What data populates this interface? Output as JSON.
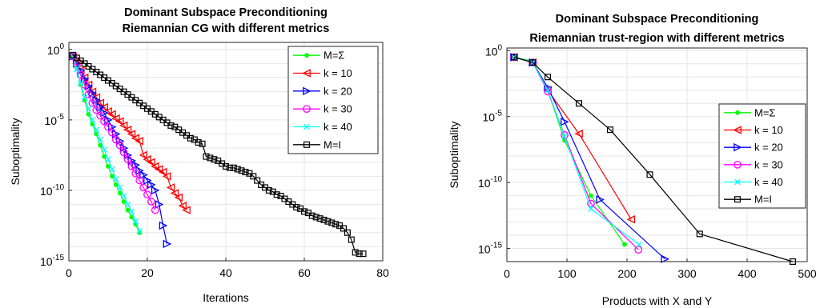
{
  "chart_data": [
    {
      "type": "line",
      "title": [
        "Dominant Subspace Preconditioning",
        "Riemannian CG with different metrics"
      ],
      "xlabel": "Iterations",
      "ylabel": "Suboptimality",
      "xlim": [
        0,
        80
      ],
      "ylim_log10": [
        -15,
        0.5
      ],
      "yscale": "log",
      "grid": true,
      "legend_position": "top-right",
      "xticks": [
        0,
        20,
        40,
        60,
        80
      ],
      "yticks": [
        {
          "exp": 0,
          "label": "10",
          "sup": "0"
        },
        {
          "exp": -5,
          "label": "10",
          "sup": "-5"
        },
        {
          "exp": -10,
          "label": "10",
          "sup": "-10"
        },
        {
          "exp": -15,
          "label": "10",
          "sup": "-15"
        }
      ],
      "series": [
        {
          "name": "M=Σ",
          "color": "#00ff00",
          "marker": "dot",
          "x": [
            1,
            2,
            3,
            4,
            5,
            6,
            7,
            8,
            9,
            10,
            11,
            12,
            13,
            14,
            15,
            16,
            17,
            18
          ],
          "log10y": [
            -0.5,
            -1.3,
            -2.5,
            -3.6,
            -4.6,
            -5.3,
            -6.0,
            -6.8,
            -7.6,
            -8.3,
            -9.0,
            -9.6,
            -10.2,
            -10.8,
            -11.4,
            -11.9,
            -12.4,
            -13.0
          ]
        },
        {
          "name": "k = 10",
          "color": "#ff0000",
          "marker": "triangle-left",
          "x": [
            1,
            2,
            3,
            4,
            5,
            6,
            7,
            8,
            9,
            10,
            11,
            12,
            13,
            14,
            15,
            16,
            17,
            18,
            19,
            20,
            21,
            22,
            23,
            24,
            25,
            26,
            27,
            28,
            29,
            30
          ],
          "log10y": [
            -0.5,
            -1.0,
            -1.5,
            -2.0,
            -2.5,
            -3.0,
            -3.4,
            -3.8,
            -4.1,
            -4.4,
            -4.6,
            -4.9,
            -5.1,
            -5.4,
            -5.7,
            -6.0,
            -6.3,
            -6.5,
            -7.5,
            -7.8,
            -8.0,
            -8.3,
            -8.5,
            -8.7,
            -9.0,
            -9.8,
            -10.2,
            -10.5,
            -11.1,
            -11.4
          ]
        },
        {
          "name": "k = 20",
          "color": "#0000ff",
          "marker": "triangle-right",
          "x": [
            1,
            2,
            3,
            4,
            5,
            6,
            7,
            8,
            9,
            10,
            11,
            12,
            13,
            14,
            15,
            16,
            17,
            18,
            19,
            20,
            21,
            22,
            23,
            24,
            25
          ],
          "log10y": [
            -0.5,
            -1.0,
            -1.5,
            -2.1,
            -2.6,
            -3.1,
            -3.6,
            -4.1,
            -4.5,
            -5.0,
            -5.5,
            -6.0,
            -6.5,
            -7.0,
            -7.5,
            -7.9,
            -8.2,
            -8.6,
            -8.9,
            -9.3,
            -9.6,
            -10.0,
            -11.0,
            -12.5,
            -13.8
          ]
        },
        {
          "name": "k = 30",
          "color": "#ff00ff",
          "marker": "circle",
          "x": [
            1,
            2,
            3,
            4,
            5,
            6,
            7,
            8,
            9,
            10,
            11,
            12,
            13,
            14,
            15,
            16,
            17,
            18,
            19,
            20,
            21,
            22
          ],
          "log10y": [
            -0.5,
            -1.1,
            -1.8,
            -2.5,
            -3.2,
            -3.8,
            -4.3,
            -4.7,
            -5.1,
            -5.5,
            -5.9,
            -6.4,
            -6.8,
            -7.3,
            -7.8,
            -8.3,
            -8.8,
            -9.3,
            -9.8,
            -10.3,
            -10.8,
            -11.4
          ]
        },
        {
          "name": "k = 40",
          "color": "#00ffff",
          "marker": "x",
          "x": [
            1,
            2,
            3,
            4,
            5,
            6,
            7,
            8,
            9,
            10,
            11,
            12,
            13,
            14,
            15,
            16,
            17,
            18
          ],
          "log10y": [
            -0.5,
            -1.4,
            -2.4,
            -3.4,
            -4.2,
            -5.0,
            -5.7,
            -6.4,
            -7.1,
            -7.8,
            -8.5,
            -9.2,
            -9.8,
            -10.4,
            -11.0,
            -11.5,
            -12.2,
            -12.9
          ]
        },
        {
          "name": "M=I",
          "color": "#000000",
          "marker": "square",
          "x": [
            1,
            2,
            3,
            4,
            5,
            6,
            7,
            8,
            9,
            10,
            11,
            12,
            13,
            14,
            15,
            16,
            17,
            18,
            19,
            20,
            21,
            22,
            23,
            24,
            25,
            26,
            27,
            28,
            29,
            30,
            31,
            32,
            33,
            34,
            35,
            36,
            37,
            38,
            39,
            40,
            41,
            42,
            43,
            44,
            45,
            46,
            47,
            48,
            49,
            50,
            51,
            52,
            53,
            54,
            55,
            56,
            57,
            58,
            59,
            60,
            61,
            62,
            63,
            64,
            65,
            66,
            67,
            68,
            69,
            70,
            71,
            72,
            73,
            74,
            75
          ],
          "log10y": [
            -0.4,
            -0.6,
            -0.8,
            -1.0,
            -1.2,
            -1.4,
            -1.6,
            -1.8,
            -2.0,
            -2.2,
            -2.4,
            -2.6,
            -2.8,
            -3.0,
            -3.2,
            -3.4,
            -3.6,
            -3.8,
            -4.0,
            -4.2,
            -4.4,
            -4.6,
            -4.8,
            -5.0,
            -5.2,
            -5.4,
            -5.5,
            -5.7,
            -5.9,
            -6.1,
            -6.3,
            -6.4,
            -6.6,
            -6.7,
            -7.6,
            -7.7,
            -7.8,
            -7.9,
            -8.1,
            -8.3,
            -8.4,
            -8.4,
            -8.5,
            -8.6,
            -8.7,
            -8.8,
            -9.0,
            -9.3,
            -9.6,
            -9.8,
            -10.0,
            -10.1,
            -10.3,
            -10.4,
            -10.6,
            -10.8,
            -11.0,
            -11.2,
            -11.3,
            -11.5,
            -11.6,
            -11.8,
            -11.9,
            -12.0,
            -12.1,
            -12.2,
            -12.3,
            -12.4,
            -12.5,
            -12.7,
            -13.0,
            -13.5,
            -14.4,
            -14.5,
            -14.5
          ]
        }
      ]
    },
    {
      "type": "line",
      "title": [
        "Dominant Subspace Preconditioning",
        "Riemannian trust-region with different metrics"
      ],
      "xlabel": "Products with X and Y",
      "ylabel": "Suboptimality",
      "xlim": [
        0,
        500
      ],
      "ylim_log10": [
        -16,
        0.2
      ],
      "yscale": "log",
      "grid": true,
      "legend_position": "right",
      "xticks": [
        0,
        100,
        200,
        300,
        400,
        500
      ],
      "yticks": [
        {
          "exp": 0,
          "label": "10",
          "sup": "0"
        },
        {
          "exp": -5,
          "label": "10",
          "sup": "-5"
        },
        {
          "exp": -10,
          "label": "10",
          "sup": "-10"
        },
        {
          "exp": -15,
          "label": "10",
          "sup": "-15"
        }
      ],
      "series": [
        {
          "name": "M=Σ",
          "color": "#00ff00",
          "marker": "dot",
          "x": [
            12,
            43,
            68,
            96,
            140,
            196
          ],
          "log10y": [
            -0.5,
            -0.8,
            -3.0,
            -6.8,
            -11.0,
            -14.7
          ]
        },
        {
          "name": "k = 10",
          "color": "#ff0000",
          "marker": "triangle-left",
          "x": [
            12,
            43,
            68,
            120,
            207
          ],
          "log10y": [
            -0.5,
            -0.9,
            -3.0,
            -6.3,
            -12.8
          ]
        },
        {
          "name": "k = 20",
          "color": "#0000ff",
          "marker": "triangle-right",
          "x": [
            12,
            43,
            68,
            96,
            155,
            263
          ],
          "log10y": [
            -0.5,
            -0.9,
            -2.8,
            -5.4,
            -11.3,
            -15.8
          ]
        },
        {
          "name": "k = 30",
          "color": "#ff00ff",
          "marker": "circle",
          "x": [
            12,
            43,
            68,
            96,
            140,
            219
          ],
          "log10y": [
            -0.5,
            -0.9,
            -3.1,
            -6.4,
            -11.6,
            -15.1
          ]
        },
        {
          "name": "k = 40",
          "color": "#00ffff",
          "marker": "x",
          "x": [
            12,
            43,
            68,
            96,
            140,
            220
          ],
          "log10y": [
            -0.5,
            -0.9,
            -3.0,
            -6.5,
            -12.0,
            -14.7
          ]
        },
        {
          "name": "M=I",
          "color": "#000000",
          "marker": "square",
          "x": [
            12,
            43,
            68,
            120,
            172,
            238,
            321,
            476
          ],
          "log10y": [
            -0.5,
            -0.9,
            -2.0,
            -4.0,
            -6.0,
            -9.4,
            -13.9,
            -16.0
          ]
        }
      ]
    }
  ]
}
